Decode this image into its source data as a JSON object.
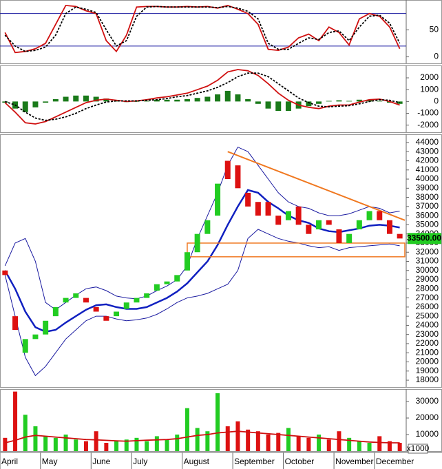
{
  "chart_data": [
    {
      "type": "stochastic",
      "ylim": [
        -12,
        105
      ],
      "yticks": [
        0,
        50
      ],
      "levels": [
        80,
        20
      ],
      "level_color": "#1a1aa0",
      "series": [
        {
          "color": "#d01010",
          "values": [
            45,
            8,
            10,
            15,
            25,
            60,
            95,
            93,
            85,
            80,
            30,
            10,
            40,
            92,
            93,
            93,
            92,
            92,
            93,
            92,
            93,
            90,
            95,
            88,
            80,
            60,
            14,
            12,
            18,
            35,
            42,
            30,
            55,
            45,
            22,
            70,
            80,
            75,
            55,
            15
          ]
        },
        {
          "color": "#000000",
          "dash": true,
          "values": [
            40,
            20,
            10,
            12,
            18,
            40,
            80,
            92,
            88,
            82,
            50,
            20,
            30,
            75,
            92,
            93,
            92,
            92,
            92,
            92,
            92,
            91,
            93,
            90,
            84,
            70,
            25,
            14,
            14,
            25,
            35,
            32,
            45,
            48,
            30,
            55,
            75,
            77,
            62,
            25
          ]
        }
      ]
    },
    {
      "type": "macd",
      "ylim": [
        -2600,
        3050
      ],
      "yticks": [
        2000,
        1000,
        0,
        -1000,
        -2000
      ],
      "histogram": {
        "color": "#1a7a1a",
        "values": [
          -100,
          -600,
          -900,
          -500,
          -100,
          200,
          400,
          500,
          500,
          400,
          250,
          50,
          -50,
          0,
          50,
          150,
          150,
          150,
          200,
          300,
          400,
          600,
          900,
          600,
          200,
          -200,
          -600,
          -800,
          -800,
          -600,
          -400,
          -200,
          50,
          100,
          50,
          150,
          150,
          50,
          -100,
          -200
        ]
      },
      "series": [
        {
          "color": "#d01010",
          "values": [
            -100,
            -900,
            -1800,
            -1900,
            -1700,
            -1300,
            -900,
            -500,
            -100,
            100,
            200,
            100,
            0,
            50,
            150,
            300,
            400,
            550,
            700,
            1000,
            1300,
            1800,
            2500,
            2700,
            2600,
            2200,
            1500,
            700,
            100,
            -300,
            -500,
            -600,
            -400,
            -300,
            -300,
            -50,
            150,
            200,
            0,
            -300
          ]
        },
        {
          "color": "#000000",
          "dash": true,
          "values": [
            0,
            -300,
            -900,
            -1400,
            -1600,
            -1500,
            -1300,
            -1000,
            -600,
            -300,
            -50,
            50,
            50,
            50,
            100,
            150,
            250,
            400,
            500,
            700,
            900,
            1200,
            1600,
            2100,
            2400,
            2400,
            2100,
            1500,
            900,
            300,
            -100,
            -400,
            -450,
            -400,
            -350,
            -200,
            0,
            150,
            100,
            -100
          ]
        }
      ]
    },
    {
      "type": "candlestick",
      "ylim": [
        17250,
        44900
      ],
      "yticks": [
        18000,
        19000,
        20000,
        21000,
        22000,
        23000,
        24000,
        25000,
        26000,
        27000,
        28000,
        29000,
        30000,
        31000,
        32000,
        33000,
        34000,
        35000,
        36000,
        37000,
        38000,
        39000,
        40000,
        41000,
        42000,
        43000,
        44000
      ],
      "up_color": "#22cc22",
      "down_color": "#dd1111",
      "open": [
        30000,
        25000,
        21000,
        22500,
        23000,
        25000,
        26500,
        27000,
        27000,
        26000,
        25000,
        25000,
        25800,
        26500,
        27000,
        27800,
        28500,
        28800,
        30000,
        32000,
        34000,
        36000,
        42000,
        41500,
        38500,
        37500,
        37500,
        36000,
        35500,
        37000,
        35000,
        34500,
        35500,
        34500,
        33000,
        34500,
        35500,
        36500,
        35500,
        34000
      ],
      "close": [
        29500,
        23500,
        22500,
        23000,
        24500,
        26000,
        27000,
        27500,
        26500,
        25500,
        24500,
        25500,
        26500,
        27000,
        27500,
        28500,
        28800,
        29500,
        32000,
        34000,
        35500,
        39500,
        40000,
        39000,
        37000,
        36000,
        36000,
        35000,
        36500,
        35000,
        34000,
        35500,
        35000,
        33000,
        34000,
        35500,
        36500,
        35500,
        34000,
        33500
      ],
      "overlays": [
        {
          "color": "#1a1aa0",
          "width": 1,
          "values": [
            30500,
            33000,
            33500,
            31000,
            26500,
            25700,
            26500,
            27300,
            28000,
            28200,
            27800,
            27200,
            27000,
            26900,
            27200,
            27800,
            28300,
            29000,
            30500,
            33500,
            36000,
            38500,
            41500,
            43500,
            43000,
            41500,
            40000,
            38500,
            37500,
            37000,
            36800,
            36300,
            36000,
            36000,
            36200,
            36600,
            37000,
            36800,
            36300,
            36500
          ]
        },
        {
          "color": "#1a1aa0",
          "width": 1,
          "values": [
            29500,
            25000,
            20500,
            18500,
            19500,
            21000,
            22500,
            23500,
            24500,
            25000,
            25000,
            24700,
            24500,
            24600,
            24800,
            25200,
            25800,
            26500,
            27000,
            27200,
            27500,
            28000,
            28500,
            30000,
            33500,
            34500,
            34000,
            33500,
            33200,
            33000,
            32700,
            32500,
            32600,
            32200,
            32500,
            32600,
            32700,
            32800,
            32900,
            32700
          ]
        },
        {
          "color": "#1020c0",
          "width": 2.5,
          "values": [
            30000,
            28000,
            25500,
            23800,
            23300,
            23500,
            24300,
            25000,
            25700,
            26200,
            26300,
            26000,
            25800,
            25800,
            26000,
            26500,
            27000,
            27700,
            28600,
            29800,
            31000,
            32800,
            35000,
            37000,
            38800,
            38500,
            37500,
            36800,
            36000,
            35500,
            35200,
            34600,
            34300,
            34200,
            34400,
            34600,
            34900,
            35000,
            34900,
            34700
          ]
        }
      ],
      "trendline": {
        "color": "#f07820",
        "x": [
          22.5,
          40
        ],
        "y": [
          43000,
          35500
        ]
      },
      "support_zone": {
        "color": "#f07820",
        "x": [
          18.5,
          40
        ],
        "y": [
          33000,
          31500
        ]
      },
      "last_price": {
        "value": 33500,
        "label": "33500.00",
        "color": "#22cc22"
      }
    },
    {
      "type": "volume",
      "ylim": [
        0,
        37500
      ],
      "yticks": [
        10000,
        20000,
        30000
      ],
      "unit_label": "x1000",
      "values": [
        8000,
        36000,
        22000,
        15000,
        9000,
        8000,
        10000,
        7000,
        6000,
        12000,
        5000,
        6000,
        7000,
        8000,
        6000,
        9000,
        7000,
        10000,
        26000,
        14000,
        12000,
        35000,
        15000,
        18000,
        13000,
        12000,
        10000,
        11000,
        14000,
        9000,
        8000,
        10000,
        7000,
        12000,
        8000,
        6000,
        5000,
        9000,
        6000,
        5000
      ],
      "colors": [
        "#dd1111",
        "#dd1111",
        "#22cc22",
        "#22cc22",
        "#22cc22",
        "#22cc22",
        "#22cc22",
        "#22cc22",
        "#dd1111",
        "#dd1111",
        "#dd1111",
        "#22cc22",
        "#22cc22",
        "#22cc22",
        "#22cc22",
        "#22cc22",
        "#22cc22",
        "#22cc22",
        "#22cc22",
        "#22cc22",
        "#22cc22",
        "#22cc22",
        "#dd1111",
        "#dd1111",
        "#dd1111",
        "#dd1111",
        "#dd1111",
        "#dd1111",
        "#22cc22",
        "#dd1111",
        "#dd1111",
        "#22cc22",
        "#dd1111",
        "#dd1111",
        "#22cc22",
        "#22cc22",
        "#22cc22",
        "#dd1111",
        "#dd1111",
        "#dd1111"
      ],
      "average": {
        "color": "#d01010",
        "values": [
          5000,
          6500,
          8500,
          9500,
          9000,
          8500,
          8000,
          7500,
          7000,
          6800,
          6500,
          6200,
          6000,
          6300,
          6600,
          6800,
          7000,
          7500,
          8500,
          9500,
          10000,
          11000,
          11500,
          12000,
          11500,
          11000,
          10500,
          10000,
          9500,
          9000,
          8500,
          8000,
          7500,
          7000,
          6500,
          6000,
          5500,
          5200,
          5000,
          5000
        ]
      },
      "categories": [
        "April",
        null,
        null,
        null,
        "May",
        null,
        null,
        null,
        null,
        "June",
        null,
        null,
        null,
        "July",
        null,
        null,
        null,
        null,
        "August",
        null,
        null,
        null,
        null,
        "September",
        null,
        null,
        null,
        null,
        "October",
        null,
        null,
        null,
        null,
        "November",
        null,
        null,
        null,
        "December",
        null,
        null
      ]
    }
  ]
}
